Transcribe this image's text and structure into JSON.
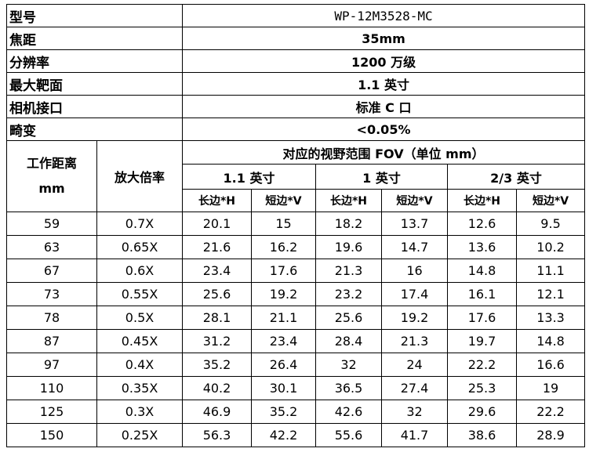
{
  "specs": [
    {
      "label": "型号",
      "value": "WP-12M3528-MC"
    },
    {
      "label": "焦距",
      "value": "35mm"
    },
    {
      "label": "分辨率",
      "value": "1200 万级"
    },
    {
      "label": "最大靶面",
      "value": "1.1 英寸"
    },
    {
      "label": "相机接口",
      "value": "标准 C 口"
    },
    {
      "label": "畸变",
      "value": "<0.05%"
    }
  ],
  "table": {
    "header": {
      "distance": "工作距离",
      "distance_unit": "mm",
      "magnification": "放大倍率",
      "fov": "对应的视野范围 FOV（单位 mm）",
      "sizes": [
        "1.1 英寸",
        "1 英寸",
        "2/3 英寸"
      ],
      "sub": [
        "长边*H",
        "短边*V",
        "长边*H",
        "短边*V",
        "长边*H",
        "短边*V"
      ]
    },
    "rows": [
      [
        59,
        "0.7X",
        20.1,
        15,
        18.2,
        13.7,
        12.6,
        9.5
      ],
      [
        63,
        "0.65X",
        21.6,
        16.2,
        19.6,
        14.7,
        13.6,
        10.2
      ],
      [
        67,
        "0.6X",
        23.4,
        17.6,
        21.3,
        16,
        14.8,
        11.1
      ],
      [
        73,
        "0.55X",
        25.6,
        19.2,
        23.2,
        17.4,
        16.1,
        12.1
      ],
      [
        78,
        "0.5X",
        28.1,
        21.1,
        25.6,
        19.2,
        17.6,
        13.3
      ],
      [
        87,
        "0.45X",
        31.2,
        23.4,
        28.4,
        21.3,
        19.7,
        14.8
      ],
      [
        97,
        "0.4X",
        35.2,
        26.4,
        32,
        24,
        22.2,
        16.6
      ],
      [
        110,
        "0.35X",
        40.2,
        30.1,
        36.5,
        27.4,
        25.3,
        19
      ],
      [
        125,
        "0.3X",
        46.9,
        35.2,
        42.6,
        32,
        29.6,
        22.2
      ],
      [
        150,
        "0.25X",
        56.3,
        42.2,
        55.6,
        41.7,
        38.6,
        28.9
      ]
    ]
  }
}
